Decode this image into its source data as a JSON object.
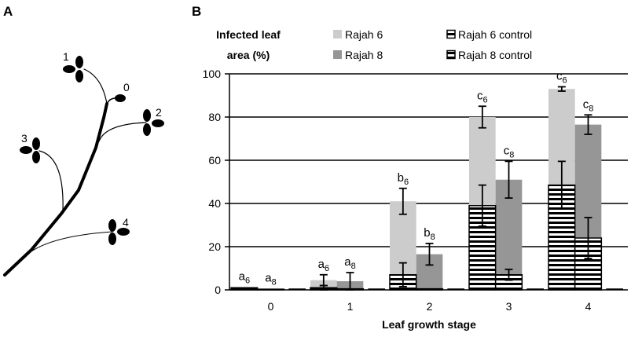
{
  "panel_a": {
    "label": "A",
    "leaf_labels": [
      "0",
      "1",
      "2",
      "3",
      "4"
    ]
  },
  "panel_b": {
    "label": "B"
  },
  "chart_data": {
    "type": "bar",
    "ylabel_lines": [
      "Infected leaf",
      "area (%)"
    ],
    "xlabel": "Leaf growth stage",
    "categories": [
      "0",
      "1",
      "2",
      "3",
      "4"
    ],
    "ylim": [
      0,
      100
    ],
    "yticks": [
      0,
      20,
      40,
      60,
      80,
      100
    ],
    "grid": true,
    "legend_position": "top",
    "series": [
      {
        "name": "Rajah 6",
        "color": "#cccccc",
        "values": [
          1.2,
          4.5,
          41,
          80,
          93
        ],
        "error": [
          0,
          2.5,
          6,
          5,
          1
        ]
      },
      {
        "name": "Rajah 8",
        "color": "#969696",
        "values": [
          0.6,
          4,
          16.5,
          51,
          76.5
        ],
        "error": [
          0,
          4,
          5,
          8.5,
          4.5
        ]
      },
      {
        "name": "Rajah 6 control",
        "pattern": "horizontal-stripes",
        "values": [
          1.0,
          1.0,
          7,
          39,
          48.5
        ],
        "error": [
          0,
          1,
          5.5,
          9.5,
          11
        ]
      },
      {
        "name": "Rajah 8 control",
        "pattern": "horizontal-stripes",
        "values": [
          0.3,
          0.5,
          0.5,
          7,
          24
        ],
        "error": [
          0,
          0,
          0,
          2.5,
          9.5
        ]
      }
    ],
    "annotations": {
      "Rajah 6": [
        {
          "letter": "a",
          "sub": "6"
        },
        {
          "letter": "a",
          "sub": "6"
        },
        {
          "letter": "b",
          "sub": "6"
        },
        {
          "letter": "c",
          "sub": "6"
        },
        {
          "letter": "c",
          "sub": "6"
        }
      ],
      "Rajah 8": [
        {
          "letter": "a",
          "sub": "8"
        },
        {
          "letter": "a",
          "sub": "8"
        },
        {
          "letter": "b",
          "sub": "8"
        },
        {
          "letter": "c",
          "sub": "8"
        },
        {
          "letter": "c",
          "sub": "8"
        }
      ]
    }
  }
}
